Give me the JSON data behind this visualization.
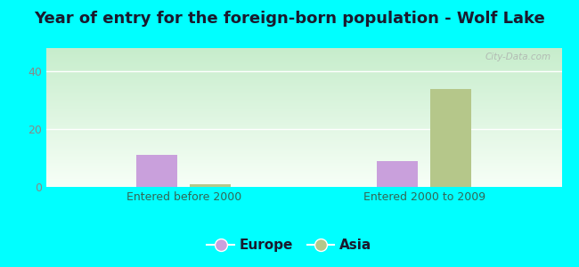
{
  "title": "Year of entry for the foreign-born population - Wolf Lake",
  "categories": [
    "Entered before 2000",
    "Entered 2000 to 2009"
  ],
  "series": {
    "Europe": [
      11,
      9
    ],
    "Asia": [
      1,
      34
    ]
  },
  "europe_color": "#c9a0dc",
  "asia_color": "#b5c78a",
  "background_color": "#00ffff",
  "ylim": [
    0,
    48
  ],
  "yticks": [
    0,
    20,
    40
  ],
  "bar_width": 0.12,
  "title_fontsize": 13,
  "axis_label_fontsize": 9,
  "legend_fontsize": 11,
  "watermark": "City-Data.com",
  "xtick_color": "#336655",
  "ytick_color": "#888888",
  "title_color": "#1a1a2e",
  "plot_bg_left": "#cce8d0",
  "plot_bg_right": "#f0faf0",
  "grid_color": "#ffffff"
}
